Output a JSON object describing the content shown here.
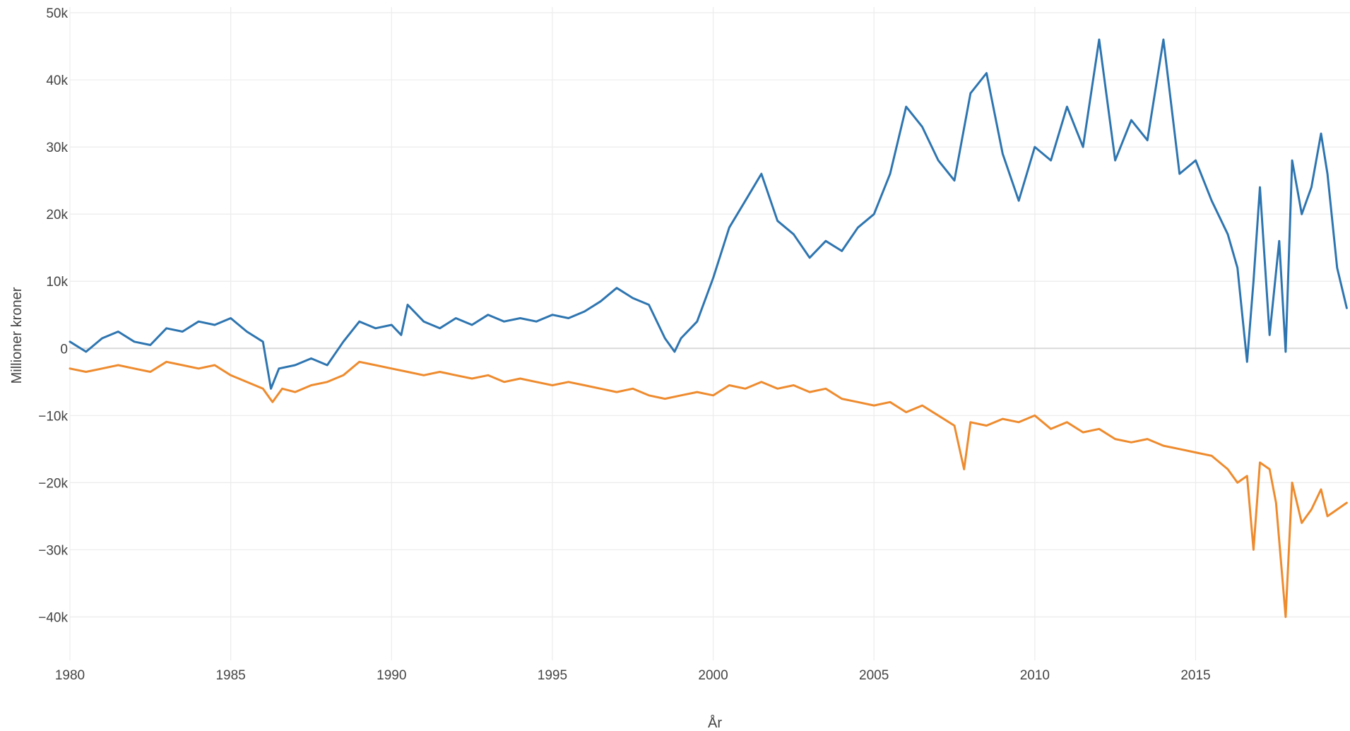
{
  "chart_data": {
    "type": "line",
    "title": "",
    "xlabel": "År",
    "ylabel": "Millioner kroner",
    "xlim": [
      1980,
      2019.8
    ],
    "ylim": [
      -43000,
      50000
    ],
    "grid": true,
    "legend": "none",
    "x_ticks": [
      1980,
      1985,
      1990,
      1995,
      2000,
      2005,
      2010,
      2015
    ],
    "x_tick_labels": [
      "1980",
      "1985",
      "1990",
      "1995",
      "2000",
      "2005",
      "2010",
      "2015"
    ],
    "y_ticks": [
      50000,
      40000,
      30000,
      20000,
      10000,
      0,
      -10000,
      -20000,
      -30000,
      -40000
    ],
    "y_tick_labels": [
      "50k",
      "40k",
      "30k",
      "20k",
      "10k",
      "0",
      "−10k",
      "−20k",
      "−30k",
      "−40k"
    ],
    "series": [
      {
        "color": "#2e75b0",
        "x": [
          1980.0,
          1980.5,
          1981.0,
          1981.5,
          1982.0,
          1982.5,
          1983.0,
          1983.5,
          1984.0,
          1984.5,
          1985.0,
          1985.5,
          1986.0,
          1986.25,
          1986.5,
          1987.0,
          1987.5,
          1988.0,
          1988.5,
          1989.0,
          1989.5,
          1990.0,
          1990.3,
          1990.5,
          1991.0,
          1991.5,
          1992.0,
          1992.5,
          1993.0,
          1993.5,
          1994.0,
          1994.5,
          1995.0,
          1995.5,
          1996.0,
          1996.5,
          1997.0,
          1997.5,
          1998.0,
          1998.5,
          1998.8,
          1999.0,
          1999.5,
          2000.0,
          2000.5,
          2001.0,
          2001.5,
          2002.0,
          2002.5,
          2003.0,
          2003.5,
          2004.0,
          2004.5,
          2005.0,
          2005.5,
          2006.0,
          2006.5,
          2007.0,
          2007.5,
          2008.0,
          2008.5,
          2009.0,
          2009.5,
          2010.0,
          2010.5,
          2011.0,
          2011.5,
          2012.0,
          2012.5,
          2013.0,
          2013.5,
          2014.0,
          2014.5,
          2015.0,
          2015.5,
          2016.0,
          2016.3,
          2016.6,
          2016.8,
          2017.0,
          2017.3,
          2017.6,
          2017.8,
          2018.0,
          2018.3,
          2018.6,
          2018.9,
          2019.1,
          2019.4,
          2019.7
        ],
        "y": [
          1000,
          -500,
          1500,
          2500,
          1000,
          500,
          3000,
          2500,
          4000,
          3500,
          4500,
          2500,
          1000,
          -6000,
          -3000,
          -2500,
          -1500,
          -2500,
          1000,
          4000,
          3000,
          3500,
          2000,
          6500,
          4000,
          3000,
          4500,
          3500,
          5000,
          4000,
          4500,
          4000,
          5000,
          4500,
          5500,
          7000,
          9000,
          7500,
          6500,
          1500,
          -500,
          1500,
          4000,
          10500,
          18000,
          22000,
          26000,
          19000,
          17000,
          13500,
          16000,
          14500,
          18000,
          20000,
          26000,
          36000,
          33000,
          28000,
          25000,
          38000,
          41000,
          29000,
          22000,
          30000,
          28000,
          36000,
          30000,
          46000,
          28000,
          34000,
          31000,
          46000,
          26000,
          28000,
          22000,
          17000,
          12000,
          -2000,
          10000,
          24000,
          2000,
          16000,
          -500,
          28000,
          20000,
          24000,
          32000,
          26000,
          12000,
          6000
        ]
      },
      {
        "color": "#ee8b2e",
        "x": [
          1980.0,
          1980.5,
          1981.0,
          1981.5,
          1982.0,
          1982.5,
          1983.0,
          1983.5,
          1984.0,
          1984.5,
          1985.0,
          1985.5,
          1986.0,
          1986.3,
          1986.6,
          1987.0,
          1987.5,
          1988.0,
          1988.5,
          1989.0,
          1989.5,
          1990.0,
          1990.5,
          1991.0,
          1991.5,
          1992.0,
          1992.5,
          1993.0,
          1993.5,
          1994.0,
          1994.5,
          1995.0,
          1995.5,
          1996.0,
          1996.5,
          1997.0,
          1997.5,
          1998.0,
          1998.5,
          1999.0,
          1999.5,
          2000.0,
          2000.5,
          2001.0,
          2001.5,
          2002.0,
          2002.5,
          2003.0,
          2003.5,
          2004.0,
          2004.5,
          2005.0,
          2005.5,
          2006.0,
          2006.5,
          2007.0,
          2007.5,
          2007.8,
          2008.0,
          2008.5,
          2009.0,
          2009.5,
          2010.0,
          2010.5,
          2011.0,
          2011.5,
          2012.0,
          2012.5,
          2013.0,
          2013.5,
          2014.0,
          2014.5,
          2015.0,
          2015.5,
          2016.0,
          2016.3,
          2016.6,
          2016.8,
          2017.0,
          2017.3,
          2017.5,
          2017.8,
          2018.0,
          2018.3,
          2018.6,
          2018.9,
          2019.1,
          2019.4,
          2019.7
        ],
        "y": [
          -3000,
          -3500,
          -3000,
          -2500,
          -3000,
          -3500,
          -2000,
          -2500,
          -3000,
          -2500,
          -4000,
          -5000,
          -6000,
          -8000,
          -6000,
          -6500,
          -5500,
          -5000,
          -4000,
          -2000,
          -2500,
          -3000,
          -3500,
          -4000,
          -3500,
          -4000,
          -4500,
          -4000,
          -5000,
          -4500,
          -5000,
          -5500,
          -5000,
          -5500,
          -6000,
          -6500,
          -6000,
          -7000,
          -7500,
          -7000,
          -6500,
          -7000,
          -5500,
          -6000,
          -5000,
          -6000,
          -5500,
          -6500,
          -6000,
          -7500,
          -8000,
          -8500,
          -8000,
          -9500,
          -8500,
          -10000,
          -11500,
          -18000,
          -11000,
          -11500,
          -10500,
          -11000,
          -10000,
          -12000,
          -11000,
          -12500,
          -12000,
          -13500,
          -14000,
          -13500,
          -14500,
          -15000,
          -15500,
          -16000,
          -18000,
          -20000,
          -19000,
          -30000,
          -17000,
          -18000,
          -23000,
          -40000,
          -20000,
          -26000,
          -24000,
          -21000,
          -25000,
          -24000,
          -23000
        ]
      }
    ]
  }
}
